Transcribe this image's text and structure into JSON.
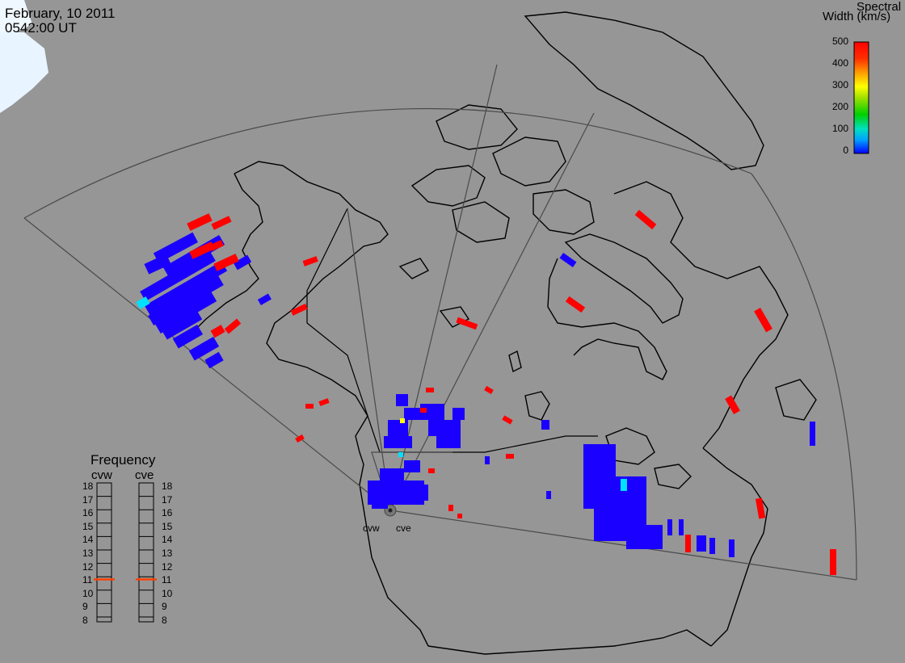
{
  "header": {
    "date": "February, 10 2011",
    "time": "0542:00 UT"
  },
  "colorbar": {
    "title_line1": "Spectral",
    "title_line2": "Width (km/s)",
    "ticks": [
      "500",
      "400",
      "300",
      "200",
      "100",
      "0"
    ],
    "colors": [
      "#0000ff",
      "#00a0ff",
      "#00e0c0",
      "#00d000",
      "#a0e000",
      "#ffff00",
      "#ffa000",
      "#ff3000",
      "#ff0000"
    ]
  },
  "frequency_panel": {
    "title": "Frequency",
    "radars": [
      "cvw",
      "cve"
    ],
    "ticks": [
      "18",
      "17",
      "16",
      "15",
      "14",
      "13",
      "12",
      "11",
      "10",
      "9",
      "8"
    ],
    "cvw_frequency_mhz": 10.8,
    "cve_frequency_mhz": 10.8,
    "indicator_color": "#ff4000"
  },
  "radar_sites": [
    "cvw",
    "cve"
  ],
  "map": {
    "background": "#969696",
    "coast_color": "#000000",
    "fov_color": "#505050"
  }
}
